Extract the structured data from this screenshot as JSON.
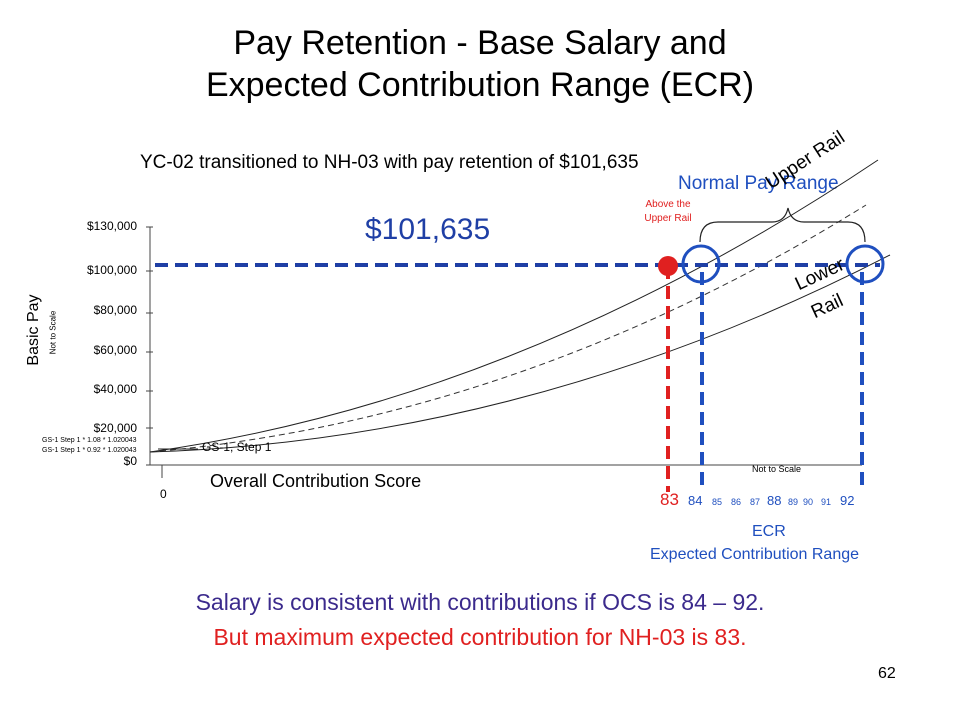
{
  "title_line1": "Pay Retention - Base Salary and",
  "title_line2": "Expected Contribution Range (ECR)",
  "subtitle": "YC-02 transitioned to NH-03 with pay retention of $101,635",
  "normal_pay_range": "Normal Pay Range",
  "upper_rail": "Upper Rail",
  "lower_rail_1": "Lower",
  "lower_rail_2": "Rail",
  "amount": "$101,635",
  "above_note": "Above the Upper Rail",
  "y_label": "Basic Pay",
  "y_label_note": "Not to Scale",
  "y_ticks": [
    "$130,000",
    "$100,000",
    "$80,000",
    "$60,000",
    "$40,000",
    "$20,000",
    "$0"
  ],
  "gs_note_1": "GS-1 Step 1 * 1.08 * 1.020043",
  "gs_note_2": "GS-1 Step 1 * 0.92 * 1.020043",
  "gs1_step1": "GS-1, Step 1",
  "x_zero": "0",
  "x_label": "Overall Contribution Score",
  "x_note": "Not to Scale",
  "ocs_83": "83",
  "ocs_84": "84",
  "ocs_85": "85",
  "ocs_86": "86",
  "ocs_87": "87",
  "ocs_88": "88",
  "ocs_89": "89",
  "ocs_90": "90",
  "ocs_91": "91",
  "ocs_92": "92",
  "ecr_abbr": "ECR",
  "ecr_full": "Expected Contribution Range",
  "bullet_1": "Salary is consistent with contributions if OCS is 84 – 92.",
  "bullet_2": "But maximum expected contribution for NH-03 is 83.",
  "page_number": "62",
  "colors": {
    "red": "#e02020",
    "blue": "#1f4fbf",
    "dark_blue": "#1f3fa5",
    "purple": "#3b2a8c"
  }
}
